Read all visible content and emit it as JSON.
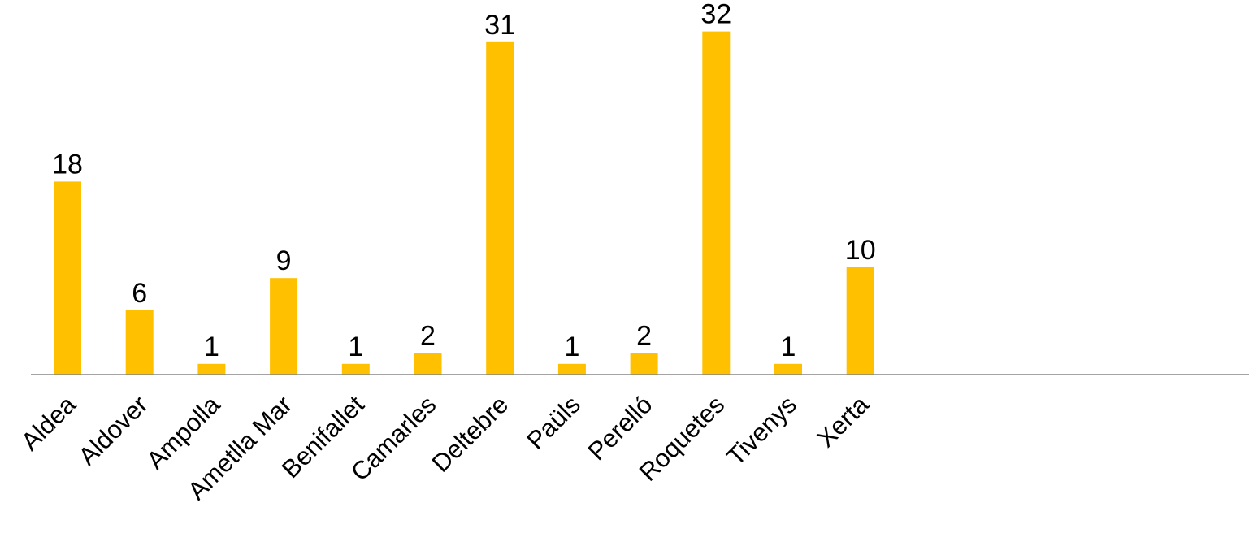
{
  "chart_data": {
    "type": "bar",
    "title": "",
    "xlabel": "",
    "ylabel": "",
    "categories": [
      "Aldea",
      "Aldover",
      "Ampolla",
      "Ametlla Mar",
      "Benifallet",
      "Camarles",
      "Deltebre",
      "Paüls",
      "Perelló",
      "Roquetes",
      "Tivenys",
      "Xerta"
    ],
    "values": [
      18,
      6,
      1,
      9,
      1,
      2,
      31,
      1,
      2,
      32,
      1,
      10
    ],
    "value_labels": [
      "18",
      "6",
      "1",
      "9",
      "1",
      "2",
      "31",
      "1",
      "2",
      "32",
      "1",
      "10"
    ],
    "ylim": [
      0,
      32
    ],
    "grid": false,
    "legend": "none",
    "bar_color": "#FFC000",
    "axis_color": "#868686",
    "text_color": "#000000"
  }
}
